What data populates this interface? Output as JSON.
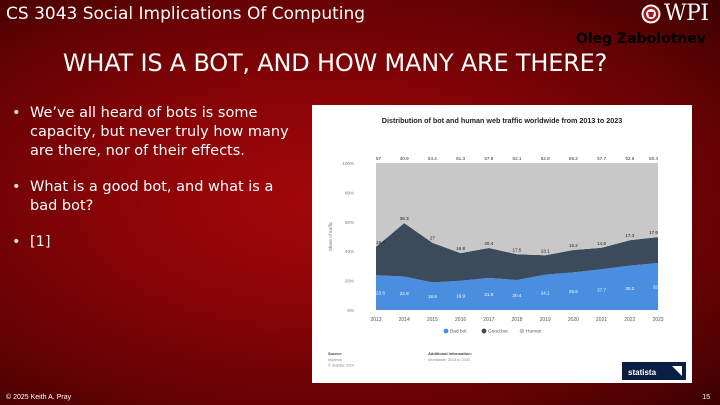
{
  "header": {
    "course": "CS 3043 Social Implications Of Computing",
    "logo_text": "WPI",
    "author": "Oleg Zabolotnev"
  },
  "slide": {
    "title": "WHAT IS A BOT, AND HOW MANY ARE THERE?",
    "bullets": [
      "We’ve all heard of bots is some capacity, but never truly how many are there, nor of their effects.",
      "What is a good bot, and what is a bad bot?",
      "[1]"
    ]
  },
  "footer": {
    "copyright": "© 2025 Keith A. Pray",
    "page_number": "15"
  },
  "chart_data": {
    "type": "area",
    "title": "Distribution of bot and human web traffic worldwide from 2013 to 2023",
    "ylabel": "Share of traffic",
    "xlabel": "",
    "ylim": [
      0,
      100
    ],
    "ytick_labels": [
      "0%",
      "20%",
      "40%",
      "60%",
      "80%",
      "100%"
    ],
    "categories": [
      "2013",
      "2014",
      "2015",
      "2016",
      "2017",
      "2018",
      "2019",
      "2020",
      "2021",
      "2022",
      "2023"
    ],
    "series": [
      {
        "name": "Bad bot",
        "color": "#4a8ee0",
        "values": [
          23.6,
          22.8,
          18.8,
          19.9,
          21.8,
          20.4,
          24.1,
          25.6,
          27.7,
          30.2,
          32
        ]
      },
      {
        "name": "Good bot",
        "color": "#3c4b5b",
        "values": [
          19.4,
          36.3,
          27,
          18.8,
          20.4,
          17.5,
          13.1,
          15.2,
          14.6,
          17.3,
          17.6
        ]
      },
      {
        "name": "Human",
        "color": "#c8c8c8",
        "values": [
          57,
          40.9,
          54.4,
          61.3,
          57.8,
          62.1,
          62.8,
          59.2,
          57.7,
          52.6,
          50.4
        ]
      }
    ],
    "legend_position": "bottom",
    "grid": true,
    "source_label": "Source",
    "source_lines": [
      "Imperva",
      "© Statista 2024"
    ],
    "info_label": "Additional Information:",
    "info_line": "Worldwide; 2013 to 2023",
    "brand": "statista"
  }
}
